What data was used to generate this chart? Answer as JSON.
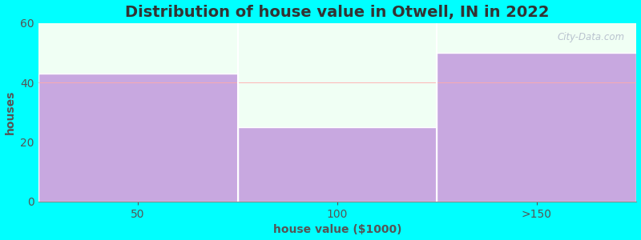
{
  "categories": [
    "50",
    "100",
    ">150"
  ],
  "values": [
    43,
    25,
    50
  ],
  "bar_color": "#c8a8e0",
  "bar_edgecolor": "#ffffff",
  "title": "Distribution of house value in Otwell, IN in 2022",
  "xlabel": "house value ($1000)",
  "ylabel": "houses",
  "ylim": [
    0,
    60
  ],
  "yticks": [
    0,
    20,
    40,
    60
  ],
  "background_color": "#00ffff",
  "plot_bg_color": "#f0fff4",
  "title_fontsize": 14,
  "label_fontsize": 10,
  "tick_fontsize": 10,
  "bar_width": 1.0
}
